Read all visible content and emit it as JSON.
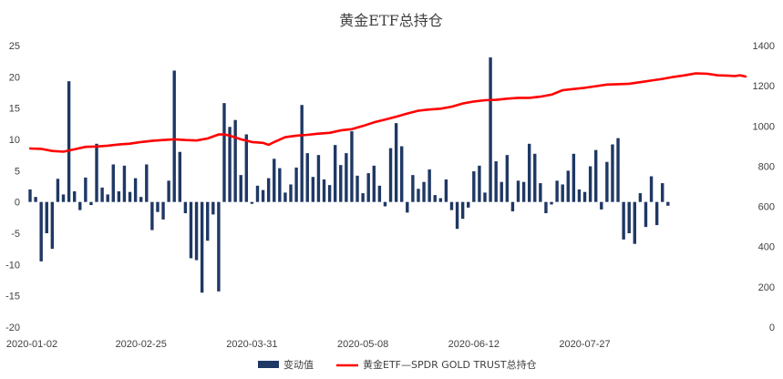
{
  "chart_data": {
    "type": "bar+line",
    "title": "黄金ETF总持仓",
    "x_tick_labels": [
      "2020-01-02",
      "2020-02-25",
      "2020-03-31",
      "2020-05-08",
      "2020-06-12",
      "2020-07-27"
    ],
    "x_tick_indices": [
      0,
      20,
      40,
      60,
      80,
      100
    ],
    "y_left": {
      "min": -20,
      "max": 25,
      "step": 5,
      "ticks": [
        "-20",
        "-15",
        "-10",
        "-5",
        "0",
        "5",
        "10",
        "15",
        "20",
        "25"
      ]
    },
    "y_right": {
      "min": 0,
      "max": 1400,
      "step": 200,
      "ticks": [
        "0",
        "200",
        "400",
        "600",
        "800",
        "1000",
        "1200",
        "1400"
      ]
    },
    "series": [
      {
        "name": "变动值",
        "type": "bar",
        "axis": "left",
        "color": "#1f3864",
        "values": [
          2.0,
          0.8,
          -9.5,
          -5.0,
          -7.5,
          3.7,
          1.2,
          19.3,
          1.7,
          -1.3,
          3.9,
          -0.5,
          9.3,
          2.3,
          1.2,
          6.0,
          1.7,
          5.8,
          1.6,
          3.8,
          0.8,
          6.0,
          -4.5,
          -1.6,
          -2.8,
          3.4,
          21.0,
          8.0,
          -1.8,
          -9.0,
          -9.3,
          -14.5,
          -6.2,
          -2.0,
          -14.3,
          15.8,
          12.0,
          13.1,
          4.3,
          10.8,
          -0.3,
          2.6,
          1.9,
          3.8,
          6.9,
          5.4,
          1.5,
          2.8,
          5.5,
          15.5,
          7.8,
          4.0,
          7.5,
          3.6,
          2.7,
          9.1,
          5.9,
          7.8,
          11.3,
          4.2,
          1.4,
          4.6,
          5.8,
          2.6,
          -0.7,
          8.6,
          12.6,
          8.9,
          -1.7,
          4.3,
          2.1,
          3.2,
          5.2,
          1.1,
          0.6,
          3.6,
          -1.3,
          -4.3,
          -2.7,
          -0.9,
          4.9,
          5.8,
          1.5,
          23.1,
          6.5,
          3.2,
          7.5,
          -1.5,
          3.4,
          3.2,
          9.3,
          7.7,
          3.0,
          -1.8,
          -0.4,
          3.4,
          2.8,
          5.0,
          7.7,
          2.0,
          1.6,
          5.7,
          8.3,
          -1.2,
          6.4,
          9.2,
          10.2,
          -6.0,
          -5.0,
          -6.7,
          1.4,
          -4.0,
          4.1,
          -3.7,
          3.0,
          -0.6
        ],
        "bar_indices": [
          0,
          1,
          2,
          3,
          4,
          5,
          6,
          7,
          8,
          9,
          10,
          11,
          12,
          13,
          14,
          15,
          16,
          17,
          18,
          19,
          20,
          21,
          22,
          23,
          24,
          25,
          26,
          27,
          28,
          29,
          30,
          31,
          32,
          33,
          34,
          35,
          36,
          37,
          38,
          39,
          40,
          41,
          42,
          43,
          44,
          45,
          46,
          47,
          48,
          49,
          50,
          51,
          52,
          53,
          54,
          55,
          56,
          57,
          58,
          59,
          60,
          61,
          62,
          63,
          64,
          65,
          66,
          67,
          68,
          69,
          70,
          71,
          72,
          73,
          74,
          75,
          76,
          77,
          78,
          79,
          80,
          81,
          82,
          83,
          84,
          85,
          86,
          87,
          88,
          89,
          90,
          91,
          92,
          93,
          94,
          95,
          96,
          97,
          98,
          99,
          100,
          101,
          102,
          103,
          104,
          105,
          106,
          107,
          108,
          109,
          110,
          111,
          112,
          113,
          114,
          115
        ]
      },
      {
        "name": "黄金ETF—SPDR GOLD TRUST总持仓",
        "type": "line",
        "axis": "right",
        "color": "#ff0000",
        "points": [
          [
            0,
            888
          ],
          [
            2,
            886
          ],
          [
            4,
            876
          ],
          [
            6,
            872
          ],
          [
            8,
            884
          ],
          [
            10,
            896
          ],
          [
            12,
            898
          ],
          [
            14,
            902
          ],
          [
            16,
            908
          ],
          [
            18,
            912
          ],
          [
            20,
            920
          ],
          [
            22,
            926
          ],
          [
            24,
            930
          ],
          [
            26,
            934
          ],
          [
            28,
            930
          ],
          [
            30,
            928
          ],
          [
            32,
            938
          ],
          [
            34,
            958
          ],
          [
            35,
            958
          ],
          [
            36,
            952
          ],
          [
            38,
            934
          ],
          [
            40,
            920
          ],
          [
            42,
            916
          ],
          [
            43,
            906
          ],
          [
            44,
            920
          ],
          [
            46,
            944
          ],
          [
            48,
            952
          ],
          [
            50,
            956
          ],
          [
            52,
            962
          ],
          [
            54,
            966
          ],
          [
            56,
            978
          ],
          [
            58,
            984
          ],
          [
            60,
            1000
          ],
          [
            62,
            1018
          ],
          [
            64,
            1032
          ],
          [
            66,
            1046
          ],
          [
            68,
            1062
          ],
          [
            70,
            1076
          ],
          [
            72,
            1082
          ],
          [
            74,
            1086
          ],
          [
            76,
            1096
          ],
          [
            78,
            1112
          ],
          [
            80,
            1122
          ],
          [
            82,
            1128
          ],
          [
            84,
            1130
          ],
          [
            86,
            1136
          ],
          [
            88,
            1140
          ],
          [
            90,
            1140
          ],
          [
            92,
            1146
          ],
          [
            94,
            1156
          ],
          [
            96,
            1178
          ],
          [
            98,
            1184
          ],
          [
            100,
            1190
          ],
          [
            102,
            1198
          ],
          [
            104,
            1206
          ],
          [
            106,
            1208
          ],
          [
            108,
            1210
          ],
          [
            110,
            1218
          ],
          [
            112,
            1226
          ],
          [
            114,
            1234
          ],
          [
            116,
            1244
          ],
          [
            118,
            1252
          ],
          [
            120,
            1262
          ],
          [
            122,
            1260
          ],
          [
            124,
            1252
          ],
          [
            126,
            1250
          ],
          [
            127,
            1248
          ],
          [
            128,
            1252
          ],
          [
            129,
            1246
          ]
        ]
      }
    ],
    "legend_position": "bottom",
    "grid": false
  }
}
